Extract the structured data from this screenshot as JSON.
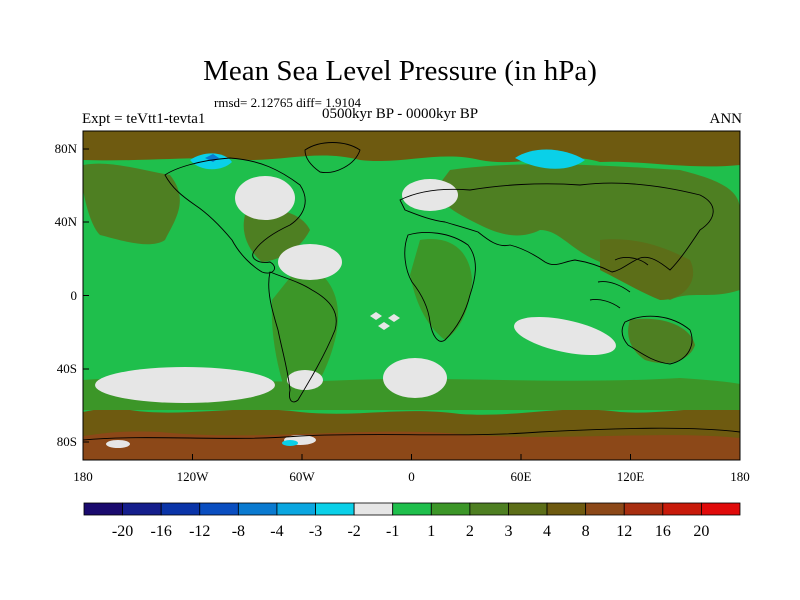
{
  "title": "Mean Sea Level Pressure (in hPa)",
  "stats_line": "rmsd= 2.12765 diff= 1.9104",
  "period": "0500kyr BP - 0000kyr BP",
  "experiment": "Expt = teVtt1-tevta1",
  "season": "ANN",
  "x_ticks": [
    "180",
    "120W",
    "60W",
    "0",
    "60E",
    "120E",
    "180"
  ],
  "y_ticks": [
    "80N",
    "40N",
    "0",
    "40S",
    "80S"
  ],
  "colorbar": {
    "colors": [
      "#1a0a6e",
      "#151e8c",
      "#0a34a8",
      "#0a4ec0",
      "#0a7ad0",
      "#0aa6e0",
      "#0ad0e8",
      "#e6e6e6",
      "#1fbf4c",
      "#3c9628",
      "#4e7f22",
      "#5c6e18",
      "#6e5a10",
      "#8c4818",
      "#a82e10",
      "#c81a0a",
      "#e00a0a"
    ],
    "labels": [
      "-20",
      "-16",
      "-12",
      "-8",
      "-4",
      "-3",
      "-2",
      "-1",
      "1",
      "2",
      "3",
      "4",
      "8",
      "12",
      "16",
      "20"
    ]
  },
  "map_colors": {
    "ocean_green": "#1fbf4c",
    "land_olive": "#4e7f22",
    "polar_brown": "#6e5a10",
    "near_zero": "#e6e6e6",
    "negative_cyan": "#0ad0e8"
  }
}
